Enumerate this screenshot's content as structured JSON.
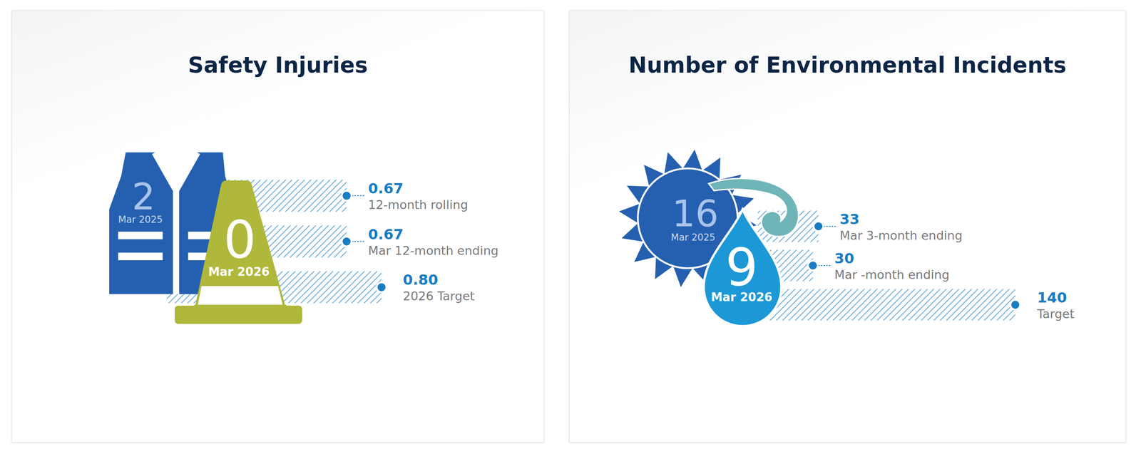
{
  "chart_data": [
    {
      "type": "bar",
      "title": "Safety Injuries",
      "orientation": "horizontal",
      "categories": [
        "12-month rolling",
        "Mar 12-month ending",
        "2026 Target"
      ],
      "values": [
        0.67,
        0.67,
        0.8
      ],
      "value_labels": [
        "0.67",
        "0.67",
        "0.80"
      ],
      "color": "#1a7cc1",
      "xlim": [
        0,
        0.8
      ],
      "grid": false,
      "data_labels": true,
      "tick_labels": false,
      "kpis": [
        {
          "value": 2,
          "label": "Mar 2025"
        },
        {
          "value": 0,
          "label": "Mar 2026"
        }
      ]
    },
    {
      "type": "bar",
      "title": "Number of Environmental Incidents",
      "orientation": "horizontal",
      "categories": [
        "Mar 3-month ending",
        "Mar -month ending",
        "Target"
      ],
      "values": [
        33,
        30,
        140
      ],
      "color": "#1a7cc1",
      "xlim": [
        0,
        140
      ],
      "grid": false,
      "data_labels": true,
      "tick_labels": false,
      "kpis": [
        {
          "value": 16,
          "label": "Mar 2025"
        },
        {
          "value": 9,
          "label": "Mar 2026"
        }
      ]
    }
  ]
}
